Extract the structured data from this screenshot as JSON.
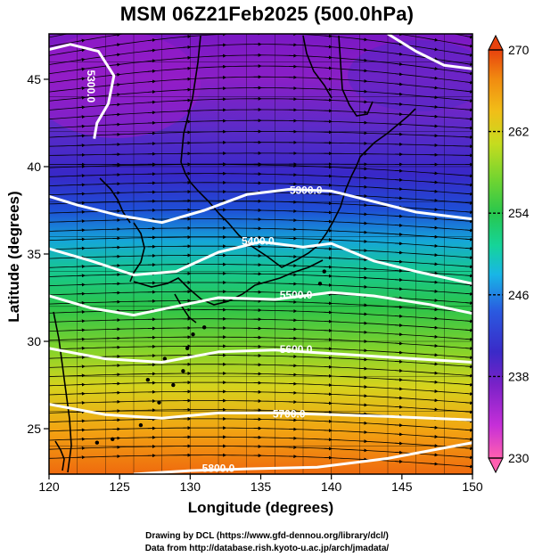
{
  "title": "MSM 06Z21Feb2025 (500.0hPa)",
  "xlabel": "Longitude (degrees)",
  "ylabel": "Latitude  (degrees)",
  "credits": [
    "Drawing by DCL (https://www.gfd-dennou.org/library/dcl/)",
    "Data from http://database.rish.kyoto-u.ac.jp/arch/jmadata/"
  ],
  "chart_data": {
    "type": "heatmap",
    "title": "MSM 06Z21Feb2025 (500.0hPa)",
    "xlabel": "Longitude (degrees)",
    "ylabel": "Latitude  (degrees)",
    "xlim": [
      120,
      150
    ],
    "ylim": [
      22.4,
      47.6
    ],
    "x_ticks": [
      120,
      125,
      130,
      135,
      140,
      145,
      150
    ],
    "y_ticks": [
      25,
      30,
      35,
      40,
      45
    ],
    "grid": true,
    "colorbar": {
      "placement": "right",
      "range": [
        230,
        270
      ],
      "ticks": [
        230,
        238,
        246,
        254,
        262,
        270
      ],
      "colors": [
        "#ff6aa8",
        "#c42bd6",
        "#7b22c8",
        "#3e27c9",
        "#2e54e0",
        "#16b4e6",
        "#14d3a0",
        "#27c650",
        "#4fd23b",
        "#a9dd22",
        "#eec41c",
        "#f59010",
        "#ea4a0e"
      ]
    },
    "contours": [
      {
        "label": "5300.0",
        "points": [
          [
            120,
            38.3
          ],
          [
            122,
            37.8
          ],
          [
            125,
            37.2
          ],
          [
            128,
            36.8
          ],
          [
            131,
            37.5
          ],
          [
            134,
            38.4
          ],
          [
            137,
            38.7
          ],
          [
            140,
            38.6
          ],
          [
            143,
            38.0
          ],
          [
            146,
            37.4
          ],
          [
            150,
            37.0
          ]
        ]
      },
      {
        "label": "5300.0",
        "points": [
          [
            120,
            46.7
          ],
          [
            121.5,
            47.0
          ],
          [
            123.5,
            46.6
          ],
          [
            124.6,
            45.2
          ],
          [
            124.2,
            43.6
          ],
          [
            123.4,
            42.5
          ],
          [
            123.2,
            41.6
          ]
        ]
      },
      {
        "label": "5400.0",
        "points": [
          [
            120,
            35.3
          ],
          [
            123,
            34.6
          ],
          [
            126,
            33.8
          ],
          [
            129,
            34.0
          ],
          [
            132,
            35.1
          ],
          [
            135,
            35.7
          ],
          [
            138,
            35.4
          ],
          [
            140,
            35.6
          ],
          [
            143,
            34.6
          ],
          [
            146,
            34.0
          ],
          [
            150,
            33.3
          ]
        ]
      },
      {
        "label": "5500.0",
        "points": [
          [
            120,
            32.6
          ],
          [
            123,
            31.9
          ],
          [
            126,
            31.5
          ],
          [
            129,
            32.0
          ],
          [
            132,
            32.5
          ],
          [
            136,
            32.4
          ],
          [
            140,
            32.8
          ],
          [
            143,
            32.6
          ],
          [
            147,
            32.1
          ],
          [
            150,
            31.6
          ]
        ]
      },
      {
        "label": "5600.0",
        "points": [
          [
            120,
            29.6
          ],
          [
            124,
            29.0
          ],
          [
            128,
            28.8
          ],
          [
            132,
            29.4
          ],
          [
            136,
            29.5
          ],
          [
            140,
            29.3
          ],
          [
            144,
            29.1
          ],
          [
            150,
            28.8
          ]
        ]
      },
      {
        "label": "5700.0",
        "points": [
          [
            120,
            26.4
          ],
          [
            124,
            25.8
          ],
          [
            128,
            25.6
          ],
          [
            132,
            25.9
          ],
          [
            136,
            25.9
          ],
          [
            140,
            25.8
          ],
          [
            144,
            25.7
          ],
          [
            150,
            25.5
          ]
        ]
      },
      {
        "label": "5800.0",
        "points": [
          [
            126,
            22.4
          ],
          [
            130,
            22.6
          ],
          [
            134,
            22.7
          ],
          [
            139,
            22.8
          ],
          [
            144,
            23.3
          ],
          [
            150,
            24.2
          ]
        ]
      },
      {
        "label": "5300.0",
        "points": [
          [
            144,
            47.6
          ],
          [
            146,
            46.6
          ],
          [
            148,
            45.8
          ],
          [
            150,
            45.6
          ]
        ]
      }
    ],
    "contour_labels": [
      {
        "text": "5300.0",
        "lon": 122.9,
        "lat": 44.6,
        "rotate": 90
      },
      {
        "text": "5300.0",
        "lon": 138.2,
        "lat": 38.6,
        "rotate": 0
      },
      {
        "text": "5400.0",
        "lon": 134.8,
        "lat": 35.7,
        "rotate": 0
      },
      {
        "text": "5500.0",
        "lon": 137.5,
        "lat": 32.6,
        "rotate": 0
      },
      {
        "text": "5600.0",
        "lon": 137.5,
        "lat": 29.5,
        "rotate": 0
      },
      {
        "text": "5700.0",
        "lon": 137.0,
        "lat": 25.8,
        "rotate": 0
      },
      {
        "text": "5800.0",
        "lon": 132.0,
        "lat": 22.7,
        "rotate": 0
      }
    ]
  }
}
